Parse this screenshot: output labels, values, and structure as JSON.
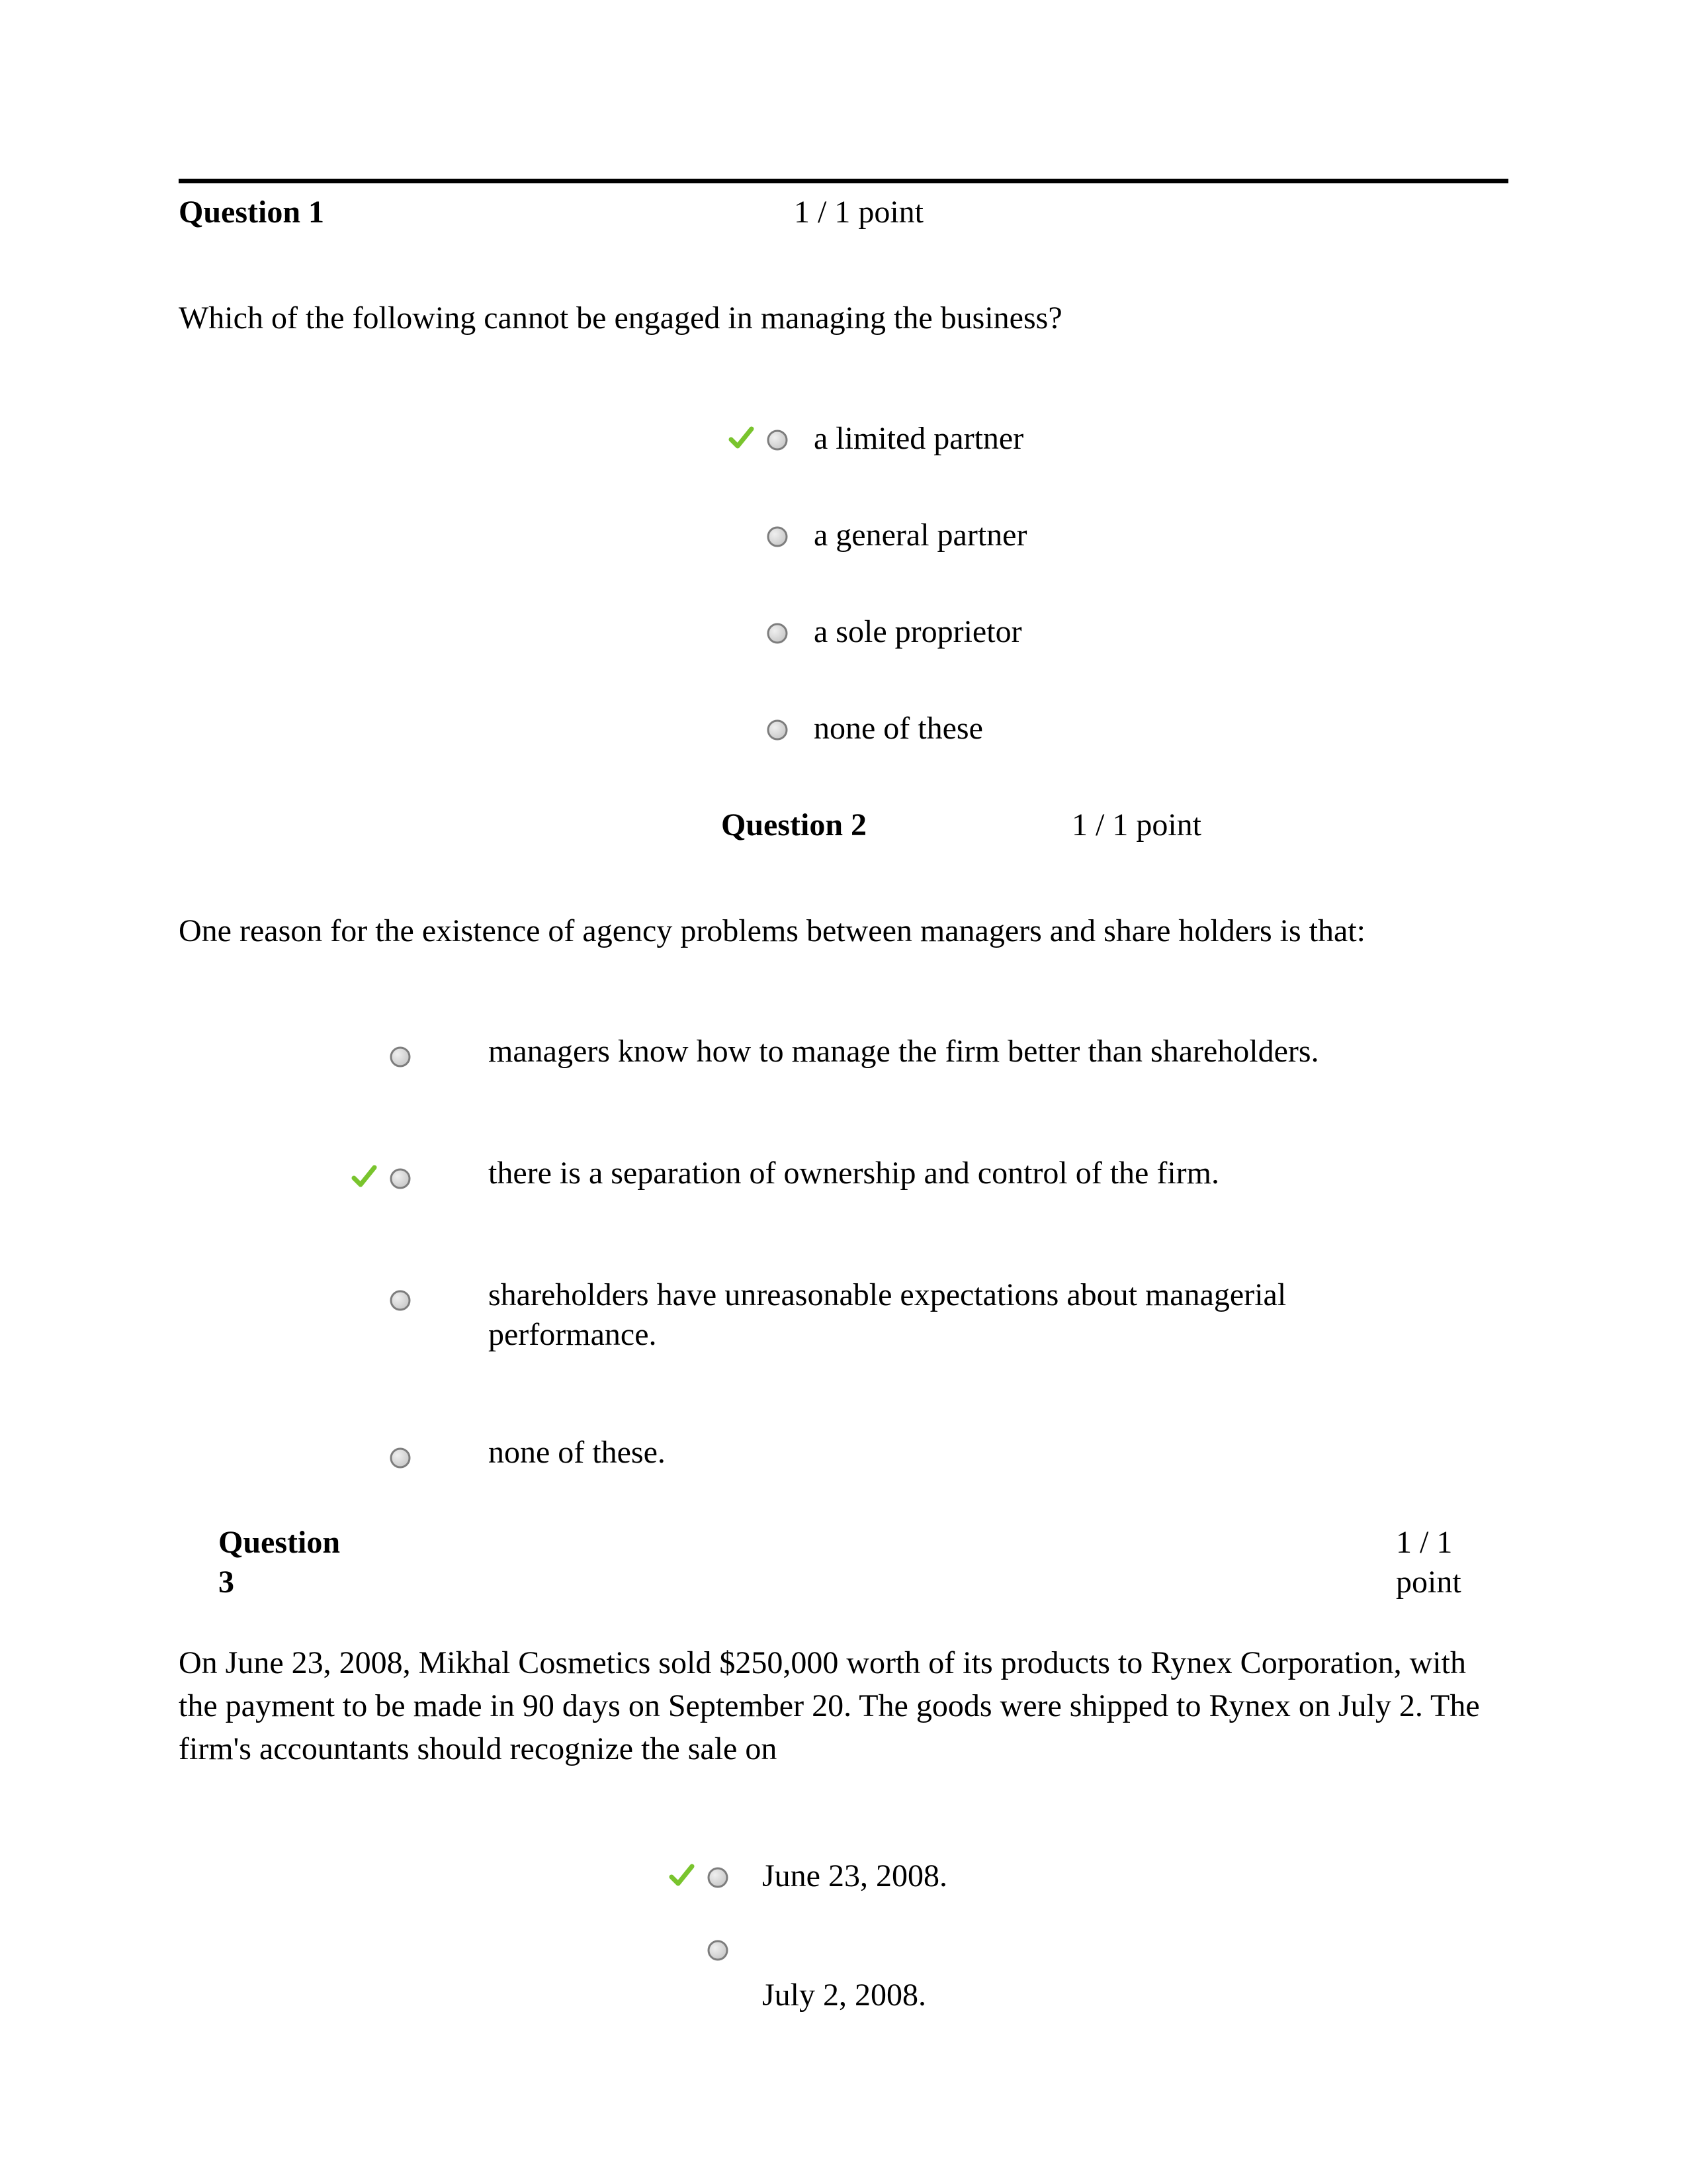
{
  "colors": {
    "check_stroke": "#79c42d",
    "radio_border": "#7d7d7d",
    "radio_highlight": "#c8c8c8",
    "radio_fill": "#efefef",
    "text": "#000000",
    "rule": "#000000",
    "background": "#ffffff"
  },
  "fonts": {
    "family": "Times New Roman",
    "base_size_pt": 36
  },
  "q1": {
    "label": "Question 1",
    "points": "1 / 1 point",
    "prompt": "Which of the following cannot be engaged in managing the business?",
    "options": [
      {
        "text": "a limited partner",
        "correct": true
      },
      {
        "text": "a general partner",
        "correct": false
      },
      {
        "text": "a sole proprietor",
        "correct": false
      },
      {
        "text": "none of these",
        "correct": false
      }
    ]
  },
  "q2": {
    "label": "Question 2",
    "points": "1 / 1 point",
    "prompt": "One reason for the existence of agency problems between managers and share  holders is that:",
    "options": [
      {
        "text": "managers know how to manage the firm better than shareholders.",
        "correct": false
      },
      {
        "text": "there is a separation of ownership and control of the firm.",
        "correct": true
      },
      {
        "text": "shareholders have unreasonable expectations about managerial performance.",
        "correct": false
      },
      {
        "text": "none of these.",
        "correct": false
      }
    ]
  },
  "q3": {
    "label": "Question 3",
    "points": "1 / 1 point",
    "prompt": "On June 23, 2008, Mikhal Cosmetics sold  $250,000 worth of its products  to Rynex Corporation, with the payment to be made in 90 days on September 20.  The goods were shipped to Rynex on July 2. The firm's accountants should  recognize the sale on",
    "options": [
      {
        "text": "June 23, 2008.",
        "correct": true
      },
      {
        "text": "July 2, 2008.",
        "correct": false
      }
    ]
  }
}
